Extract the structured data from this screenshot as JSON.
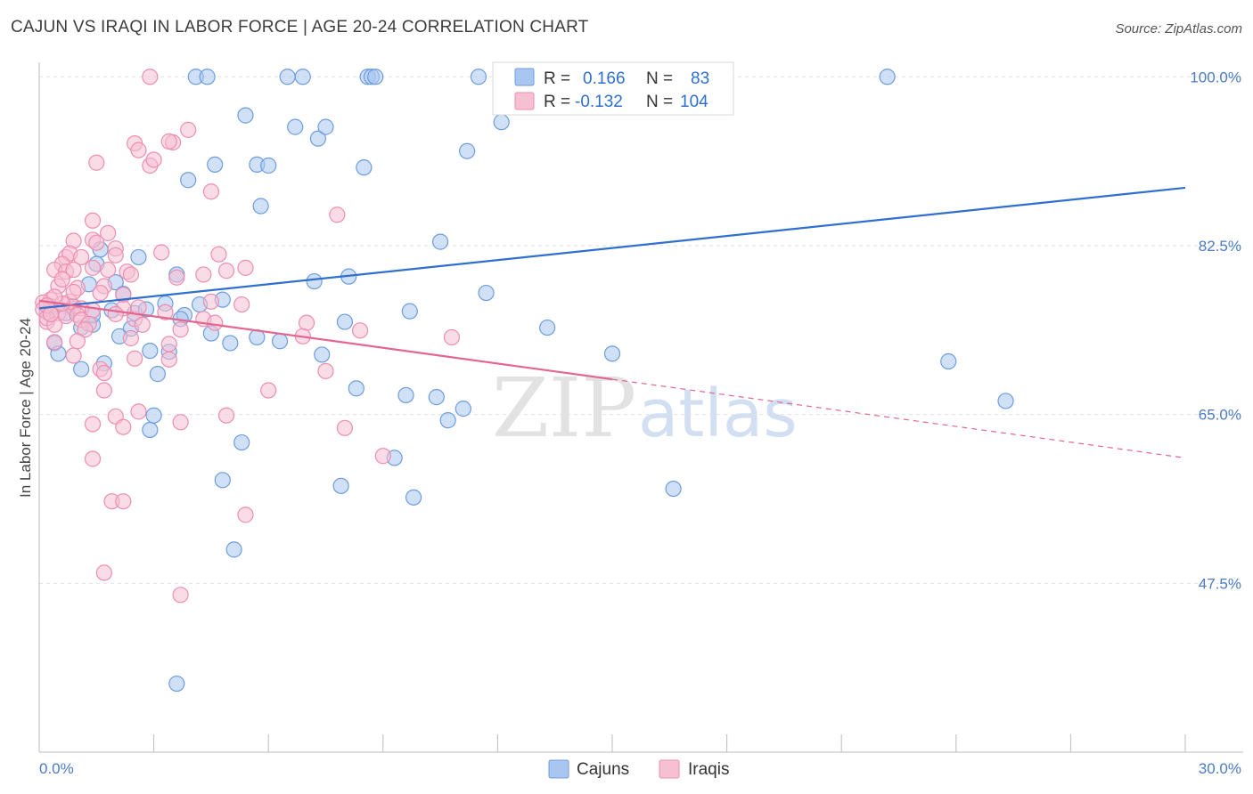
{
  "title": "CAJUN VS IRAQI IN LABOR FORCE | AGE 20-24 CORRELATION CHART",
  "source": "Source: ZipAtlas.com",
  "watermark": {
    "zip": "ZIP",
    "atlas": "atlas"
  },
  "colors": {
    "cajun_fill": "#a9c6f0",
    "cajun_stroke": "#6d9de0",
    "cajun_line": "#2f6fd0",
    "iraqi_fill": "#f6bfd2",
    "iraqi_stroke": "#ee8db0",
    "iraqi_line": "#e4668f",
    "tick_text": "#4a7bc4",
    "grid": "#e2e2e2"
  },
  "legend": {
    "r_label": "R =",
    "n_label": "N =",
    "cajun": {
      "r": "0.166",
      "n": "83"
    },
    "iraqi": {
      "r": "-0.132",
      "n": "104"
    }
  },
  "chart_data": {
    "type": "scatter",
    "title": "CAJUN VS IRAQI IN LABOR FORCE | AGE 20-24 CORRELATION CHART",
    "xlabel": "",
    "ylabel": "In Labor Force | Age 20-24",
    "xlim": [
      0,
      30
    ],
    "ylim": [
      30,
      101.5
    ],
    "x_tick_labels": [
      {
        "value": 0,
        "label": "0.0%"
      },
      {
        "value": 30,
        "label": "30.0%"
      }
    ],
    "y_ticks": [
      {
        "value": 100,
        "label": "100.0%"
      },
      {
        "value": 82.5,
        "label": "82.5%"
      },
      {
        "value": 65,
        "label": "65.0%"
      },
      {
        "value": 47.5,
        "label": "47.5%"
      }
    ],
    "x_minor_ticks": [
      0,
      3,
      6,
      9,
      12,
      15,
      18,
      21,
      24,
      27,
      30
    ],
    "series": [
      {
        "name": "Cajuns",
        "color": "#a9c6f0",
        "trend": {
          "x0": 0,
          "y0": 76.0,
          "x1": 30,
          "y1": 88.5,
          "dashed_from": null
        },
        "points": [
          [
            4.1,
            100
          ],
          [
            4.4,
            100
          ],
          [
            6.5,
            100
          ],
          [
            6.9,
            100
          ],
          [
            8.6,
            100
          ],
          [
            8.7,
            100
          ],
          [
            8.8,
            100
          ],
          [
            11.5,
            100
          ],
          [
            12.5,
            100
          ],
          [
            14.9,
            100
          ],
          [
            22.2,
            100
          ],
          [
            12.1,
            95.3
          ],
          [
            5.4,
            96.0
          ],
          [
            6.7,
            94.8
          ],
          [
            7.3,
            93.6
          ],
          [
            7.5,
            94.8
          ],
          [
            11.2,
            92.3
          ],
          [
            3.9,
            89.3
          ],
          [
            4.6,
            90.9
          ],
          [
            5.7,
            90.9
          ],
          [
            6.0,
            90.8
          ],
          [
            8.5,
            90.6
          ],
          [
            5.8,
            86.6
          ],
          [
            10.5,
            82.9
          ],
          [
            2.6,
            81.3
          ],
          [
            1.6,
            82.1
          ],
          [
            1.5,
            80.6
          ],
          [
            1.3,
            78.5
          ],
          [
            2.0,
            78.7
          ],
          [
            7.2,
            78.8
          ],
          [
            8.1,
            79.3
          ],
          [
            11.7,
            77.6
          ],
          [
            3.6,
            79.5
          ],
          [
            3.3,
            76.5
          ],
          [
            2.2,
            77.5
          ],
          [
            0.2,
            75.6
          ],
          [
            0.7,
            75.5
          ],
          [
            1.1,
            74.0
          ],
          [
            1.4,
            74.3
          ],
          [
            1.9,
            75.8
          ],
          [
            2.5,
            75.5
          ],
          [
            4.2,
            76.4
          ],
          [
            3.8,
            75.3
          ],
          [
            3.7,
            74.9
          ],
          [
            4.5,
            73.4
          ],
          [
            5.0,
            72.4
          ],
          [
            5.7,
            73.0
          ],
          [
            8.0,
            74.6
          ],
          [
            9.7,
            75.7
          ],
          [
            13.3,
            74.0
          ],
          [
            15.0,
            71.3
          ],
          [
            0.4,
            72.4
          ],
          [
            0.5,
            71.3
          ],
          [
            1.7,
            70.3
          ],
          [
            1.1,
            69.7
          ],
          [
            2.9,
            71.6
          ],
          [
            3.4,
            71.5
          ],
          [
            7.4,
            71.2
          ],
          [
            3.1,
            69.2
          ],
          [
            8.3,
            67.7
          ],
          [
            9.6,
            67.0
          ],
          [
            10.4,
            66.8
          ],
          [
            11.1,
            65.6
          ],
          [
            10.7,
            64.4
          ],
          [
            3.0,
            64.9
          ],
          [
            2.9,
            63.4
          ],
          [
            5.3,
            62.1
          ],
          [
            9.3,
            60.5
          ],
          [
            4.8,
            58.2
          ],
          [
            7.9,
            57.6
          ],
          [
            9.8,
            56.4
          ],
          [
            16.6,
            57.3
          ],
          [
            5.1,
            51.0
          ],
          [
            3.6,
            37.1
          ],
          [
            23.8,
            70.5
          ],
          [
            25.3,
            66.4
          ],
          [
            2.4,
            73.9
          ],
          [
            4.8,
            76.9
          ],
          [
            0.3,
            76.2
          ],
          [
            1.4,
            75.3
          ],
          [
            2.1,
            73.1
          ],
          [
            6.3,
            72.6
          ],
          [
            2.8,
            75.9
          ],
          [
            0.9,
            76.0
          ]
        ]
      },
      {
        "name": "Iraqis",
        "color": "#f6bfd2",
        "trend": {
          "x0": 0,
          "y0": 76.8,
          "x1": 30,
          "y1": 60.5,
          "dashed_from": 15
        },
        "points": [
          [
            2.9,
            100
          ],
          [
            3.9,
            94.5
          ],
          [
            3.5,
            93.2
          ],
          [
            3.4,
            93.3
          ],
          [
            2.5,
            93.1
          ],
          [
            2.6,
            92.4
          ],
          [
            2.9,
            90.8
          ],
          [
            1.5,
            91.1
          ],
          [
            3.0,
            91.4
          ],
          [
            4.5,
            88.1
          ],
          [
            7.8,
            85.7
          ],
          [
            1.4,
            85.1
          ],
          [
            1.4,
            83.1
          ],
          [
            1.8,
            83.8
          ],
          [
            0.9,
            83.0
          ],
          [
            1.5,
            82.8
          ],
          [
            2.0,
            82.2
          ],
          [
            3.2,
            81.8
          ],
          [
            4.7,
            81.6
          ],
          [
            2.0,
            81.5
          ],
          [
            0.7,
            81.3
          ],
          [
            0.8,
            81.7
          ],
          [
            1.1,
            81.3
          ],
          [
            0.6,
            80.6
          ],
          [
            0.4,
            80.0
          ],
          [
            0.7,
            79.8
          ],
          [
            0.9,
            80.0
          ],
          [
            1.4,
            80.2
          ],
          [
            1.8,
            80.0
          ],
          [
            2.3,
            79.8
          ],
          [
            2.4,
            79.5
          ],
          [
            3.6,
            79.2
          ],
          [
            4.3,
            79.5
          ],
          [
            4.9,
            79.9
          ],
          [
            5.4,
            80.2
          ],
          [
            0.5,
            78.3
          ],
          [
            1.0,
            78.1
          ],
          [
            1.7,
            78.3
          ],
          [
            2.2,
            77.4
          ],
          [
            0.3,
            76.9
          ],
          [
            0.8,
            76.7
          ],
          [
            0.9,
            76.2
          ],
          [
            1.1,
            76.0
          ],
          [
            1.4,
            75.8
          ],
          [
            2.2,
            76.0
          ],
          [
            4.5,
            76.7
          ],
          [
            5.3,
            76.4
          ],
          [
            0.1,
            76.6
          ],
          [
            0.3,
            75.9
          ],
          [
            0.5,
            75.5
          ],
          [
            0.7,
            75.2
          ],
          [
            1.0,
            75.3
          ],
          [
            1.1,
            74.8
          ],
          [
            1.3,
            74.4
          ],
          [
            2.0,
            75.4
          ],
          [
            2.5,
            74.9
          ],
          [
            2.7,
            74.3
          ],
          [
            3.7,
            73.8
          ],
          [
            4.3,
            74.9
          ],
          [
            4.6,
            74.5
          ],
          [
            7.0,
            74.5
          ],
          [
            8.4,
            73.7
          ],
          [
            10.8,
            73.0
          ],
          [
            6.9,
            73.1
          ],
          [
            0.2,
            74.6
          ],
          [
            0.4,
            72.5
          ],
          [
            2.4,
            72.9
          ],
          [
            3.4,
            72.3
          ],
          [
            2.5,
            70.8
          ],
          [
            3.4,
            70.7
          ],
          [
            7.5,
            69.5
          ],
          [
            1.6,
            69.7
          ],
          [
            1.7,
            69.3
          ],
          [
            0.9,
            71.1
          ],
          [
            1.7,
            67.5
          ],
          [
            6.0,
            67.5
          ],
          [
            2.6,
            65.3
          ],
          [
            2.0,
            64.8
          ],
          [
            4.9,
            64.9
          ],
          [
            1.4,
            64.0
          ],
          [
            2.2,
            63.7
          ],
          [
            3.7,
            64.2
          ],
          [
            8.0,
            63.6
          ],
          [
            1.4,
            60.4
          ],
          [
            9.0,
            60.7
          ],
          [
            1.9,
            56.0
          ],
          [
            2.2,
            56.0
          ],
          [
            5.4,
            54.6
          ],
          [
            1.7,
            48.6
          ],
          [
            3.7,
            46.3
          ],
          [
            0.1,
            75.9
          ],
          [
            0.2,
            75.0
          ],
          [
            0.6,
            76.5
          ],
          [
            1.2,
            73.8
          ],
          [
            0.4,
            77.2
          ],
          [
            1.6,
            77.6
          ],
          [
            2.6,
            76.1
          ],
          [
            3.3,
            75.6
          ],
          [
            0.2,
            76.3
          ],
          [
            0.4,
            74.3
          ],
          [
            1.0,
            72.6
          ],
          [
            0.3,
            75.4
          ],
          [
            0.9,
            77.7
          ],
          [
            0.6,
            79.0
          ]
        ]
      }
    ]
  },
  "bottom_legend": [
    {
      "label": "Cajuns",
      "color": "#a9c6f0"
    },
    {
      "label": "Iraqis",
      "color": "#f6bfd2"
    }
  ]
}
